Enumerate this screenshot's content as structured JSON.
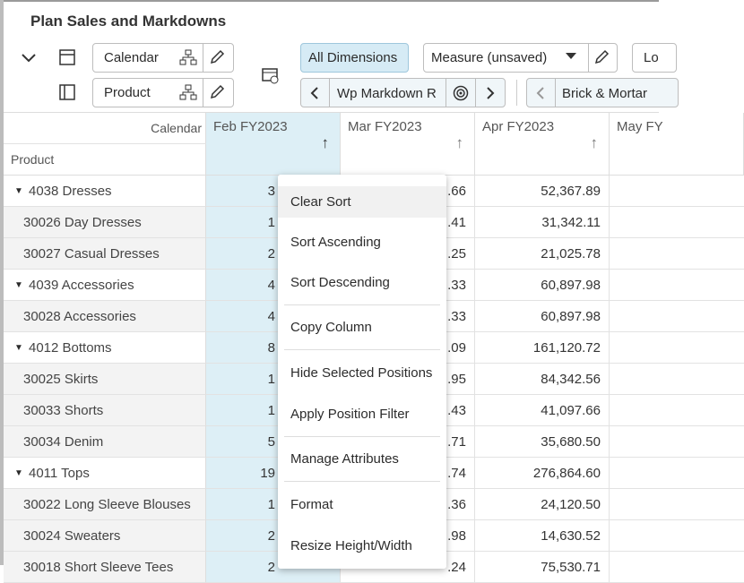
{
  "header": {
    "title": "Plan Sales and Markdowns"
  },
  "toolbar": {
    "calendar": "Calendar",
    "product": "Product",
    "all_dimensions": "All Dimensions",
    "measure": "Measure (unsaved)",
    "truncated_button": "Lo",
    "markdown": "Wp Markdown R",
    "channel": "Brick & Mortar"
  },
  "grid": {
    "calendar_label": "Calendar",
    "product_label": "Product",
    "columns": [
      "Feb FY2023",
      "Mar FY2023",
      "Apr FY2023",
      "May FY"
    ],
    "rows": [
      {
        "name": "4038 Dresses",
        "group": true,
        "cells": [
          "3",
          ".66",
          "52,367.89"
        ]
      },
      {
        "name": "30026 Day Dresses",
        "group": false,
        "cells": [
          "1",
          ".41",
          "31,342.11"
        ]
      },
      {
        "name": "30027 Casual Dresses",
        "group": false,
        "cells": [
          "2",
          ".25",
          "21,025.78"
        ]
      },
      {
        "name": "4039 Accessories",
        "group": true,
        "cells": [
          "4",
          ".33",
          "60,897.98"
        ]
      },
      {
        "name": "30028 Accessories",
        "group": false,
        "cells": [
          "4",
          ".33",
          "60,897.98"
        ]
      },
      {
        "name": "4012 Bottoms",
        "group": true,
        "cells": [
          "8",
          ".09",
          "161,120.72"
        ]
      },
      {
        "name": "30025 Skirts",
        "group": false,
        "cells": [
          "1",
          ".95",
          "84,342.56"
        ]
      },
      {
        "name": "30033 Shorts",
        "group": false,
        "cells": [
          "1",
          ".43",
          "41,097.66"
        ]
      },
      {
        "name": "30034 Denim",
        "group": false,
        "cells": [
          "5",
          ".71",
          "35,680.50"
        ]
      },
      {
        "name": "4011 Tops",
        "group": true,
        "cells": [
          "19",
          ".74",
          "276,864.60"
        ]
      },
      {
        "name": "30022 Long Sleeve Blouses",
        "group": false,
        "cells": [
          "1",
          ".36",
          "24,120.50"
        ]
      },
      {
        "name": "30024 Sweaters",
        "group": false,
        "cells": [
          "2",
          ".98",
          "14,630.52"
        ]
      },
      {
        "name": "30018 Short Sleeve Tees",
        "group": false,
        "cells": [
          "2",
          ".24",
          "75,530.71"
        ]
      }
    ]
  },
  "context_menu": {
    "items": [
      "Clear Sort",
      "Sort Ascending",
      "Sort Descending",
      "Copy Column",
      "Hide Selected Positions",
      "Apply Position Filter",
      "Manage Attributes",
      "Format",
      "Resize Height/Width"
    ]
  }
}
